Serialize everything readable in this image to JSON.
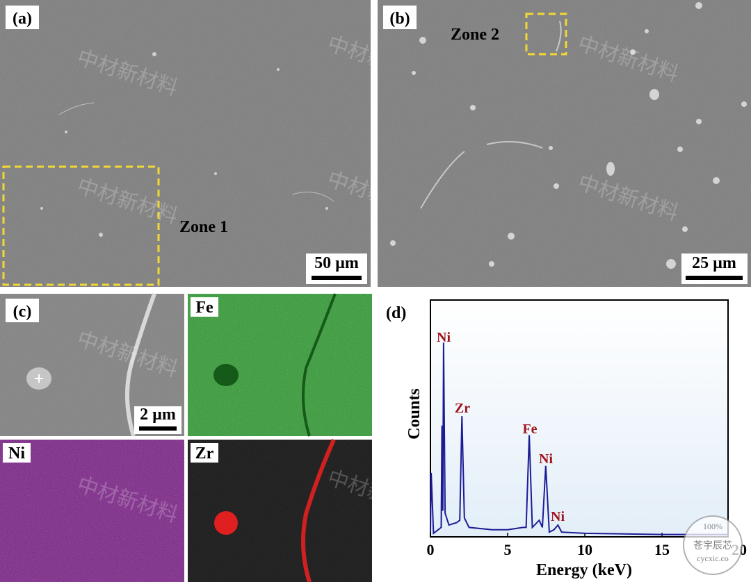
{
  "panels": {
    "a": {
      "label": "(a)",
      "zone": "Zone 1",
      "scale_bar": "50 µm"
    },
    "b": {
      "label": "(b)",
      "zone": "Zone 2",
      "scale_bar": "25 µm"
    },
    "c": {
      "label": "(c)",
      "scale_bar": "2 µm",
      "maps": [
        "Fe",
        "Ni",
        "Zr"
      ]
    }
  },
  "watermark": "中材新材料",
  "stamp": {
    "percent": "100%",
    "name": "苍宇辰芯",
    "site": "cycxic.co"
  },
  "chart_data": {
    "type": "line",
    "title": "(d)",
    "x_label": "Energy (keV)",
    "y_label": "Counts",
    "x": [
      0,
      0.05,
      0.2,
      0.5,
      0.7,
      0.75,
      0.8,
      0.85,
      0.95,
      1.2,
      1.7,
      1.9,
      2.04,
      2.2,
      2.5,
      4,
      5,
      6,
      6.2,
      6.4,
      6.6,
      7.05,
      7.25,
      7.47,
      7.7,
      8.0,
      8.26,
      8.5,
      10,
      15,
      19.3
    ],
    "series": [
      {
        "color": "#1c1c96",
        "values": [
          2,
          27,
          1.5,
          3,
          4,
          47,
          11,
          82,
          10,
          5,
          6,
          7,
          51,
          8,
          4,
          3,
          3,
          4,
          4,
          43,
          4,
          7,
          4,
          30,
          2,
          3,
          5,
          2,
          1.5,
          1,
          1
        ]
      }
    ],
    "xlim": [
      0,
      20
    ],
    "ylim": [
      0,
      100
    ],
    "xticks": [
      0,
      5,
      10,
      15,
      20
    ],
    "annotations": [
      "Ni",
      "Zr",
      "Fe",
      "Ni",
      "Ni"
    ]
  }
}
